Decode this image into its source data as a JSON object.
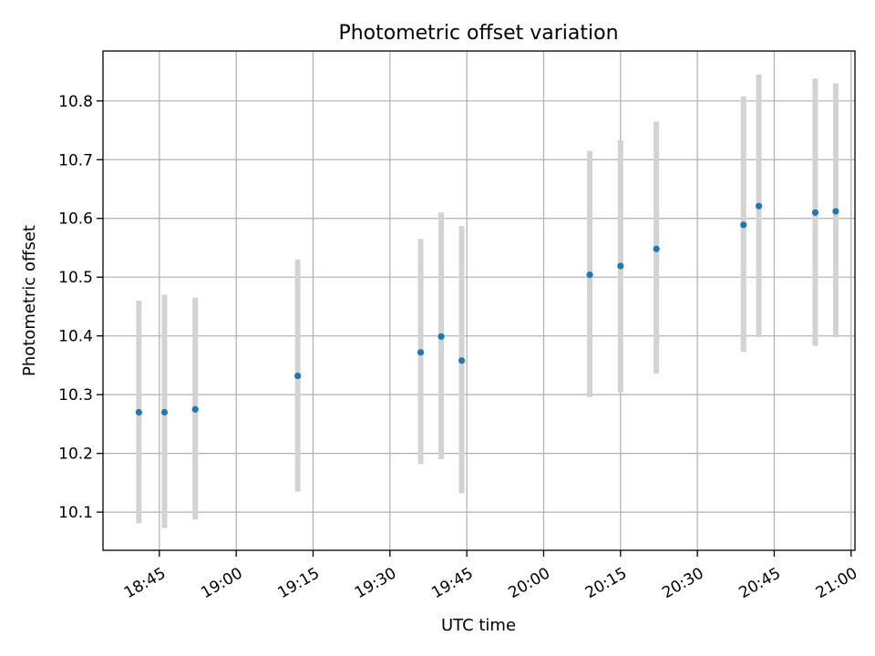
{
  "chart_data": {
    "type": "scatter",
    "title": "Photometric offset variation",
    "xlabel": "UTC time",
    "ylabel": "Photometric offset",
    "x_unit": "UTC clock time (HH:MM)",
    "xlim": [
      "18:34",
      "21:00:45"
    ],
    "ylim": [
      10.035,
      10.885
    ],
    "grid": true,
    "x_ticks": [
      "18:45",
      "19:00",
      "19:15",
      "19:30",
      "19:45",
      "20:00",
      "20:15",
      "20:30",
      "20:45",
      "21:00"
    ],
    "y_ticks": [
      10.1,
      10.2,
      10.3,
      10.4,
      10.5,
      10.6,
      10.7,
      10.8
    ],
    "y_tick_labels": [
      "10.1",
      "10.2",
      "10.3",
      "10.4",
      "10.5",
      "10.6",
      "10.7",
      "10.8"
    ],
    "colors": {
      "point": "#1f77b4",
      "errorbar": "#d3d3d3",
      "grid": "#b0b0b0"
    },
    "points": [
      {
        "x": "18:41",
        "y": 10.27,
        "err_low": 10.081,
        "err_high": 10.46
      },
      {
        "x": "18:46",
        "y": 10.27,
        "err_low": 10.073,
        "err_high": 10.47
      },
      {
        "x": "18:52",
        "y": 10.275,
        "err_low": 10.088,
        "err_high": 10.465
      },
      {
        "x": "19:12",
        "y": 10.332,
        "err_low": 10.135,
        "err_high": 10.53
      },
      {
        "x": "19:36",
        "y": 10.372,
        "err_low": 10.182,
        "err_high": 10.565
      },
      {
        "x": "19:40",
        "y": 10.399,
        "err_low": 10.19,
        "err_high": 10.61
      },
      {
        "x": "19:44",
        "y": 10.358,
        "err_low": 10.132,
        "err_high": 10.587
      },
      {
        "x": "20:09",
        "y": 10.504,
        "err_low": 10.296,
        "err_high": 10.715
      },
      {
        "x": "20:15",
        "y": 10.519,
        "err_low": 10.304,
        "err_high": 10.733
      },
      {
        "x": "20:22",
        "y": 10.548,
        "err_low": 10.336,
        "err_high": 10.765
      },
      {
        "x": "20:39",
        "y": 10.589,
        "err_low": 10.373,
        "err_high": 10.808
      },
      {
        "x": "20:42",
        "y": 10.621,
        "err_low": 10.398,
        "err_high": 10.845
      },
      {
        "x": "20:53",
        "y": 10.61,
        "err_low": 10.383,
        "err_high": 10.838
      },
      {
        "x": "20:57",
        "y": 10.612,
        "err_low": 10.398,
        "err_high": 10.83
      }
    ]
  }
}
